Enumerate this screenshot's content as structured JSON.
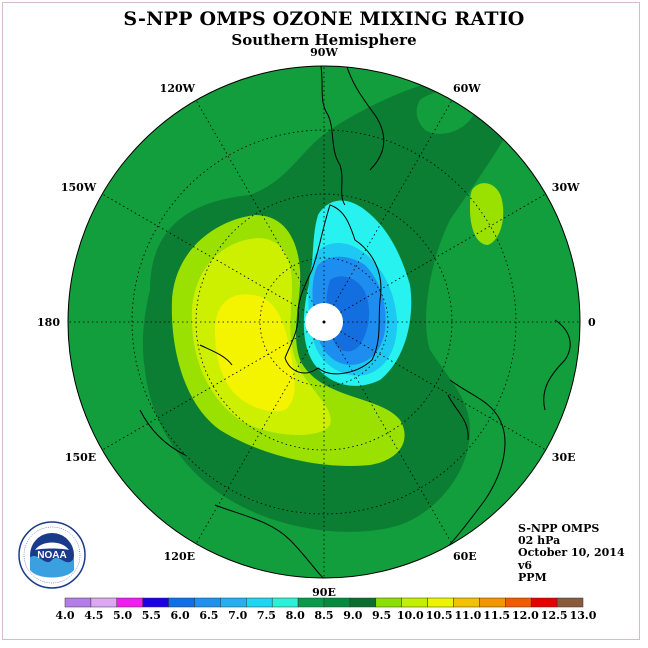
{
  "title": "S-NPP OMPS OZONE MIXING RATIO",
  "subtitle": "Southern Hemisphere",
  "longitude_labels": [
    {
      "text": "90W",
      "lon": -90
    },
    {
      "text": "60W",
      "lon": -60
    },
    {
      "text": "30W",
      "lon": -30
    },
    {
      "text": "0",
      "lon": 0
    },
    {
      "text": "30E",
      "lon": 30
    },
    {
      "text": "60E",
      "lon": 60
    },
    {
      "text": "90E",
      "lon": 90
    },
    {
      "text": "120E",
      "lon": 120
    },
    {
      "text": "150E",
      "lon": 150
    },
    {
      "text": "180",
      "lon": 180
    },
    {
      "text": "150W",
      "lon": -150
    },
    {
      "text": "120W",
      "lon": -120
    }
  ],
  "info": {
    "instrument": "S-NPP OMPS",
    "level": "02 hPa",
    "date": "October 10, 2014",
    "version": "v6",
    "units": "PPM"
  },
  "logo": {
    "text": "NOAA",
    "ring_text": "NATIONAL OCEANIC AND ATMOSPHERIC ADMINISTRATION · U.S. DEPARTMENT OF COMMERCE"
  },
  "colorbar": {
    "labels": [
      "4.0",
      "4.5",
      "5.0",
      "5.5",
      "6.0",
      "6.5",
      "7.0",
      "7.5",
      "8.0",
      "8.5",
      "9.0",
      "9.5",
      "10.0",
      "10.5",
      "11.0",
      "11.5",
      "12.0",
      "12.5",
      "13.0"
    ],
    "colors": [
      "#b57ee6",
      "#dca8f2",
      "#f21cf2",
      "#1c00e6",
      "#0f6ee8",
      "#1f90ee",
      "#23aff0",
      "#1dd7f2",
      "#2af2d8",
      "#0b9a4a",
      "#068a3b",
      "#0c6e2c",
      "#8ae000",
      "#c2f000",
      "#eef400",
      "#f2c200",
      "#f29600",
      "#f25a00",
      "#e60000",
      "#8a5a3c"
    ]
  },
  "colors": {
    "c8to8_5": "#129e3c",
    "c8_5to9": "#0b7e33",
    "c9to9_5": "#9ae000",
    "c9_5to10": "#ccf000",
    "c10to10_5": "#f4f400",
    "c7_5to8": "#27f2ef",
    "c7to7_5": "#1dc8f2",
    "c6_5to7": "#1d8ef0",
    "c6to6_5": "#136ee0"
  }
}
